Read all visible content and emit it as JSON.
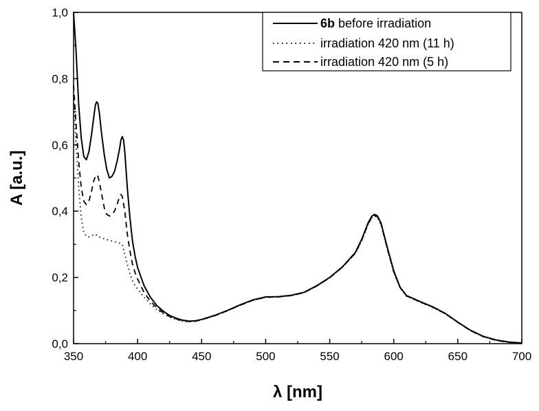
{
  "chart_data": {
    "type": "line",
    "title": "",
    "xlabel": "λ [nm]",
    "ylabel": "A [a.u.]",
    "xlim": [
      350,
      700
    ],
    "ylim": [
      0,
      1.0
    ],
    "xticks": [
      350,
      400,
      450,
      500,
      550,
      600,
      650,
      700
    ],
    "yticks": [
      0.0,
      0.2,
      0.4,
      0.6,
      0.8,
      1.0
    ],
    "xtick_labels": [
      "350",
      "400",
      "450",
      "500",
      "550",
      "600",
      "650",
      "700"
    ],
    "ytick_labels": [
      "0,0",
      "0,2",
      "0,4",
      "0,6",
      "0,8",
      "1,0"
    ],
    "grid": false,
    "legend_position": "top-right",
    "series": [
      {
        "name": "6b before irradiation",
        "name_bold_part": "6b",
        "name_rest": " before irradiation",
        "style": "solid",
        "color": "#000000",
        "points": [
          [
            350,
            1.0
          ],
          [
            352,
            0.88
          ],
          [
            354,
            0.72
          ],
          [
            356,
            0.62
          ],
          [
            358,
            0.565
          ],
          [
            360,
            0.555
          ],
          [
            362,
            0.58
          ],
          [
            364,
            0.63
          ],
          [
            366,
            0.69
          ],
          [
            367,
            0.72
          ],
          [
            368,
            0.73
          ],
          [
            369,
            0.725
          ],
          [
            370,
            0.7
          ],
          [
            372,
            0.63
          ],
          [
            374,
            0.57
          ],
          [
            376,
            0.525
          ],
          [
            378,
            0.5
          ],
          [
            380,
            0.505
          ],
          [
            382,
            0.52
          ],
          [
            384,
            0.55
          ],
          [
            386,
            0.59
          ],
          [
            387,
            0.615
          ],
          [
            388,
            0.625
          ],
          [
            389,
            0.615
          ],
          [
            390,
            0.58
          ],
          [
            392,
            0.47
          ],
          [
            394,
            0.38
          ],
          [
            396,
            0.31
          ],
          [
            398,
            0.265
          ],
          [
            400,
            0.23
          ],
          [
            405,
            0.175
          ],
          [
            410,
            0.14
          ],
          [
            415,
            0.115
          ],
          [
            420,
            0.098
          ],
          [
            425,
            0.085
          ],
          [
            430,
            0.077
          ],
          [
            435,
            0.071
          ],
          [
            440,
            0.068
          ],
          [
            445,
            0.069
          ],
          [
            450,
            0.073
          ],
          [
            460,
            0.085
          ],
          [
            470,
            0.1
          ],
          [
            480,
            0.117
          ],
          [
            490,
            0.132
          ],
          [
            500,
            0.141
          ],
          [
            510,
            0.142
          ],
          [
            520,
            0.146
          ],
          [
            530,
            0.155
          ],
          [
            540,
            0.175
          ],
          [
            550,
            0.2
          ],
          [
            560,
            0.232
          ],
          [
            570,
            0.275
          ],
          [
            575,
            0.315
          ],
          [
            580,
            0.365
          ],
          [
            583,
            0.385
          ],
          [
            585,
            0.39
          ],
          [
            587,
            0.387
          ],
          [
            590,
            0.365
          ],
          [
            595,
            0.29
          ],
          [
            600,
            0.22
          ],
          [
            605,
            0.17
          ],
          [
            610,
            0.145
          ],
          [
            620,
            0.128
          ],
          [
            630,
            0.112
          ],
          [
            640,
            0.092
          ],
          [
            650,
            0.065
          ],
          [
            660,
            0.04
          ],
          [
            670,
            0.022
          ],
          [
            680,
            0.011
          ],
          [
            690,
            0.005
          ],
          [
            700,
            0.002
          ]
        ]
      },
      {
        "name": "irradiation 420 nm (11 h)",
        "style": "dotted",
        "color": "#000000",
        "points": [
          [
            350,
            0.75
          ],
          [
            352,
            0.6
          ],
          [
            354,
            0.47
          ],
          [
            356,
            0.38
          ],
          [
            358,
            0.335
          ],
          [
            360,
            0.325
          ],
          [
            362,
            0.322
          ],
          [
            364,
            0.325
          ],
          [
            366,
            0.33
          ],
          [
            368,
            0.328
          ],
          [
            370,
            0.322
          ],
          [
            375,
            0.315
          ],
          [
            380,
            0.31
          ],
          [
            385,
            0.305
          ],
          [
            388,
            0.3
          ],
          [
            390,
            0.27
          ],
          [
            392,
            0.24
          ],
          [
            394,
            0.21
          ],
          [
            396,
            0.19
          ],
          [
            398,
            0.175
          ],
          [
            400,
            0.165
          ],
          [
            405,
            0.14
          ],
          [
            410,
            0.12
          ],
          [
            415,
            0.103
          ],
          [
            420,
            0.09
          ],
          [
            425,
            0.08
          ],
          [
            430,
            0.073
          ],
          [
            435,
            0.068
          ],
          [
            440,
            0.066
          ],
          [
            445,
            0.067
          ],
          [
            450,
            0.072
          ],
          [
            460,
            0.084
          ],
          [
            470,
            0.099
          ],
          [
            480,
            0.116
          ],
          [
            490,
            0.131
          ],
          [
            500,
            0.14
          ],
          [
            510,
            0.141
          ],
          [
            520,
            0.145
          ],
          [
            530,
            0.154
          ],
          [
            540,
            0.174
          ],
          [
            550,
            0.199
          ],
          [
            560,
            0.231
          ],
          [
            570,
            0.272
          ],
          [
            575,
            0.31
          ],
          [
            580,
            0.36
          ],
          [
            583,
            0.38
          ],
          [
            585,
            0.385
          ],
          [
            587,
            0.382
          ],
          [
            590,
            0.36
          ],
          [
            595,
            0.285
          ],
          [
            600,
            0.215
          ],
          [
            605,
            0.168
          ],
          [
            610,
            0.143
          ],
          [
            620,
            0.126
          ],
          [
            630,
            0.11
          ],
          [
            640,
            0.09
          ],
          [
            650,
            0.064
          ],
          [
            660,
            0.039
          ],
          [
            670,
            0.021
          ],
          [
            680,
            0.01
          ],
          [
            690,
            0.004
          ],
          [
            700,
            0.001
          ]
        ]
      },
      {
        "name": "irradiation 420 nm (5 h)",
        "style": "dashed",
        "color": "#000000",
        "points": [
          [
            350,
            0.78
          ],
          [
            352,
            0.66
          ],
          [
            354,
            0.55
          ],
          [
            356,
            0.47
          ],
          [
            358,
            0.43
          ],
          [
            360,
            0.42
          ],
          [
            362,
            0.43
          ],
          [
            364,
            0.46
          ],
          [
            366,
            0.495
          ],
          [
            368,
            0.51
          ],
          [
            369,
            0.505
          ],
          [
            370,
            0.49
          ],
          [
            372,
            0.45
          ],
          [
            374,
            0.41
          ],
          [
            376,
            0.39
          ],
          [
            378,
            0.385
          ],
          [
            380,
            0.39
          ],
          [
            382,
            0.4
          ],
          [
            384,
            0.42
          ],
          [
            386,
            0.445
          ],
          [
            387,
            0.45
          ],
          [
            388,
            0.445
          ],
          [
            390,
            0.4
          ],
          [
            392,
            0.33
          ],
          [
            394,
            0.28
          ],
          [
            396,
            0.24
          ],
          [
            398,
            0.215
          ],
          [
            400,
            0.195
          ],
          [
            405,
            0.155
          ],
          [
            410,
            0.128
          ],
          [
            415,
            0.108
          ],
          [
            420,
            0.093
          ],
          [
            425,
            0.082
          ],
          [
            430,
            0.075
          ],
          [
            435,
            0.069
          ],
          [
            440,
            0.067
          ],
          [
            445,
            0.068
          ],
          [
            450,
            0.072
          ],
          [
            460,
            0.084
          ],
          [
            470,
            0.099
          ],
          [
            480,
            0.116
          ],
          [
            490,
            0.131
          ],
          [
            500,
            0.14
          ],
          [
            510,
            0.141
          ],
          [
            520,
            0.145
          ],
          [
            530,
            0.154
          ],
          [
            540,
            0.174
          ],
          [
            550,
            0.199
          ],
          [
            560,
            0.231
          ],
          [
            570,
            0.273
          ],
          [
            575,
            0.312
          ],
          [
            580,
            0.362
          ],
          [
            583,
            0.382
          ],
          [
            585,
            0.387
          ],
          [
            587,
            0.384
          ],
          [
            590,
            0.362
          ],
          [
            595,
            0.287
          ],
          [
            600,
            0.217
          ],
          [
            605,
            0.169
          ],
          [
            610,
            0.144
          ],
          [
            620,
            0.127
          ],
          [
            630,
            0.111
          ],
          [
            640,
            0.091
          ],
          [
            650,
            0.064
          ],
          [
            660,
            0.039
          ],
          [
            670,
            0.021
          ],
          [
            680,
            0.01
          ],
          [
            690,
            0.004
          ],
          [
            700,
            0.001
          ]
        ]
      }
    ]
  }
}
